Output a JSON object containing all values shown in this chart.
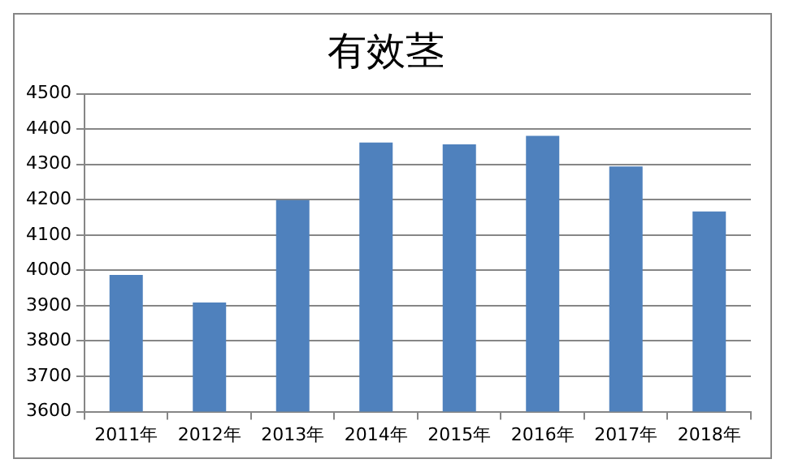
{
  "chart_data": {
    "type": "bar",
    "title": "有效茎",
    "categories": [
      "2011年",
      "2012年",
      "2013年",
      "2014年",
      "2015年",
      "2016年",
      "2017年",
      "2018年"
    ],
    "values": [
      3987,
      3909,
      4199,
      4362,
      4357,
      4381,
      4294,
      4167
    ],
    "color": "#4f81bd",
    "ylim": [
      3600,
      4500
    ],
    "yticks": [
      3600,
      3700,
      3800,
      3900,
      4000,
      4100,
      4200,
      4300,
      4400,
      4500
    ],
    "grid": "y",
    "legend": false
  }
}
